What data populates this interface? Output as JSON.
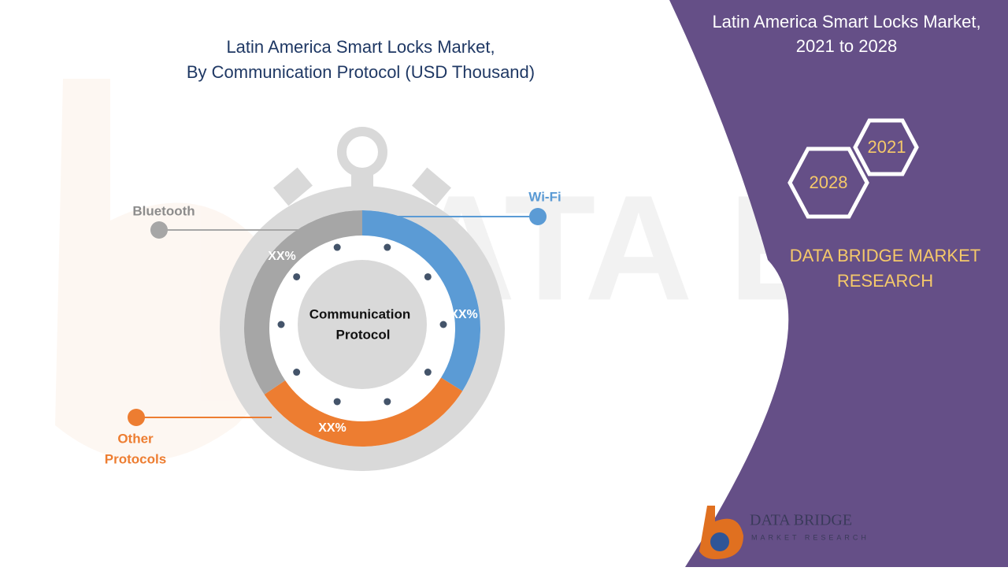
{
  "header": {
    "title_line1": "Latin America Smart Locks Market,",
    "title_line2": "By Communication Protocol (USD Thousand)"
  },
  "diagram": {
    "center_label_line1": "Communication",
    "center_label_line2": "Protocol",
    "segments": [
      {
        "name": "Wi-Fi",
        "label": "XX%"
      },
      {
        "name": "Other Protocols",
        "name_line1": "Other",
        "name_line2": "Protocols",
        "label": "XX%"
      },
      {
        "name": "Bluetooth",
        "label": "XX%"
      }
    ]
  },
  "panel": {
    "title_line1": "Latin America Smart Locks Market,",
    "title_line2": "2021 to 2028",
    "year_start": "2021",
    "year_end": "2028",
    "brand_line1": "DATA BRIDGE MARKET",
    "brand_line2": "RESEARCH"
  },
  "logo": {
    "name": "DATA BRIDGE",
    "tagline": "MARKET RESEARCH"
  }
}
